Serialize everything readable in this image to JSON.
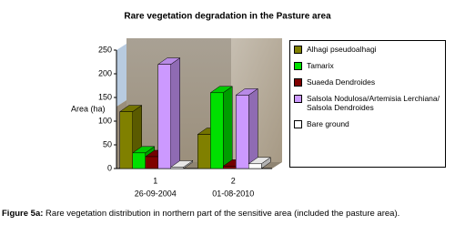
{
  "chart_data": {
    "type": "bar3d",
    "title": "Rare vegetation degradation in the Pasture area",
    "y_label": "Area (ha)",
    "categories": [
      "1",
      "2"
    ],
    "category_dates": [
      "26-09-2004",
      "01-08-2010"
    ],
    "ylim": [
      0,
      250
    ],
    "yticks": [
      0,
      50,
      100,
      150,
      200,
      250
    ],
    "legend": "right",
    "series": [
      {
        "name": "Alhagi pseudoalhagi",
        "color": "#808000",
        "values": [
          120,
          72
        ]
      },
      {
        "name": "Tamarix",
        "color": "#00e000",
        "values": [
          33,
          160
        ]
      },
      {
        "name": "Suaeda Dendroides",
        "color": "#800000",
        "values": [
          25,
          5
        ]
      },
      {
        "name": "Salsola Nodulosa/Artemisia Lerchiana/ Salsola Dendroides",
        "color": "#cc99ff",
        "values": [
          220,
          155
        ]
      },
      {
        "name": "Bare ground",
        "color": "#ffffff",
        "values": [
          3,
          10
        ]
      }
    ]
  },
  "caption": {
    "label": "Figure 5a:",
    "text": "Rare vegetation distribution in northern part of the sensitive area (included the pasture area)."
  }
}
